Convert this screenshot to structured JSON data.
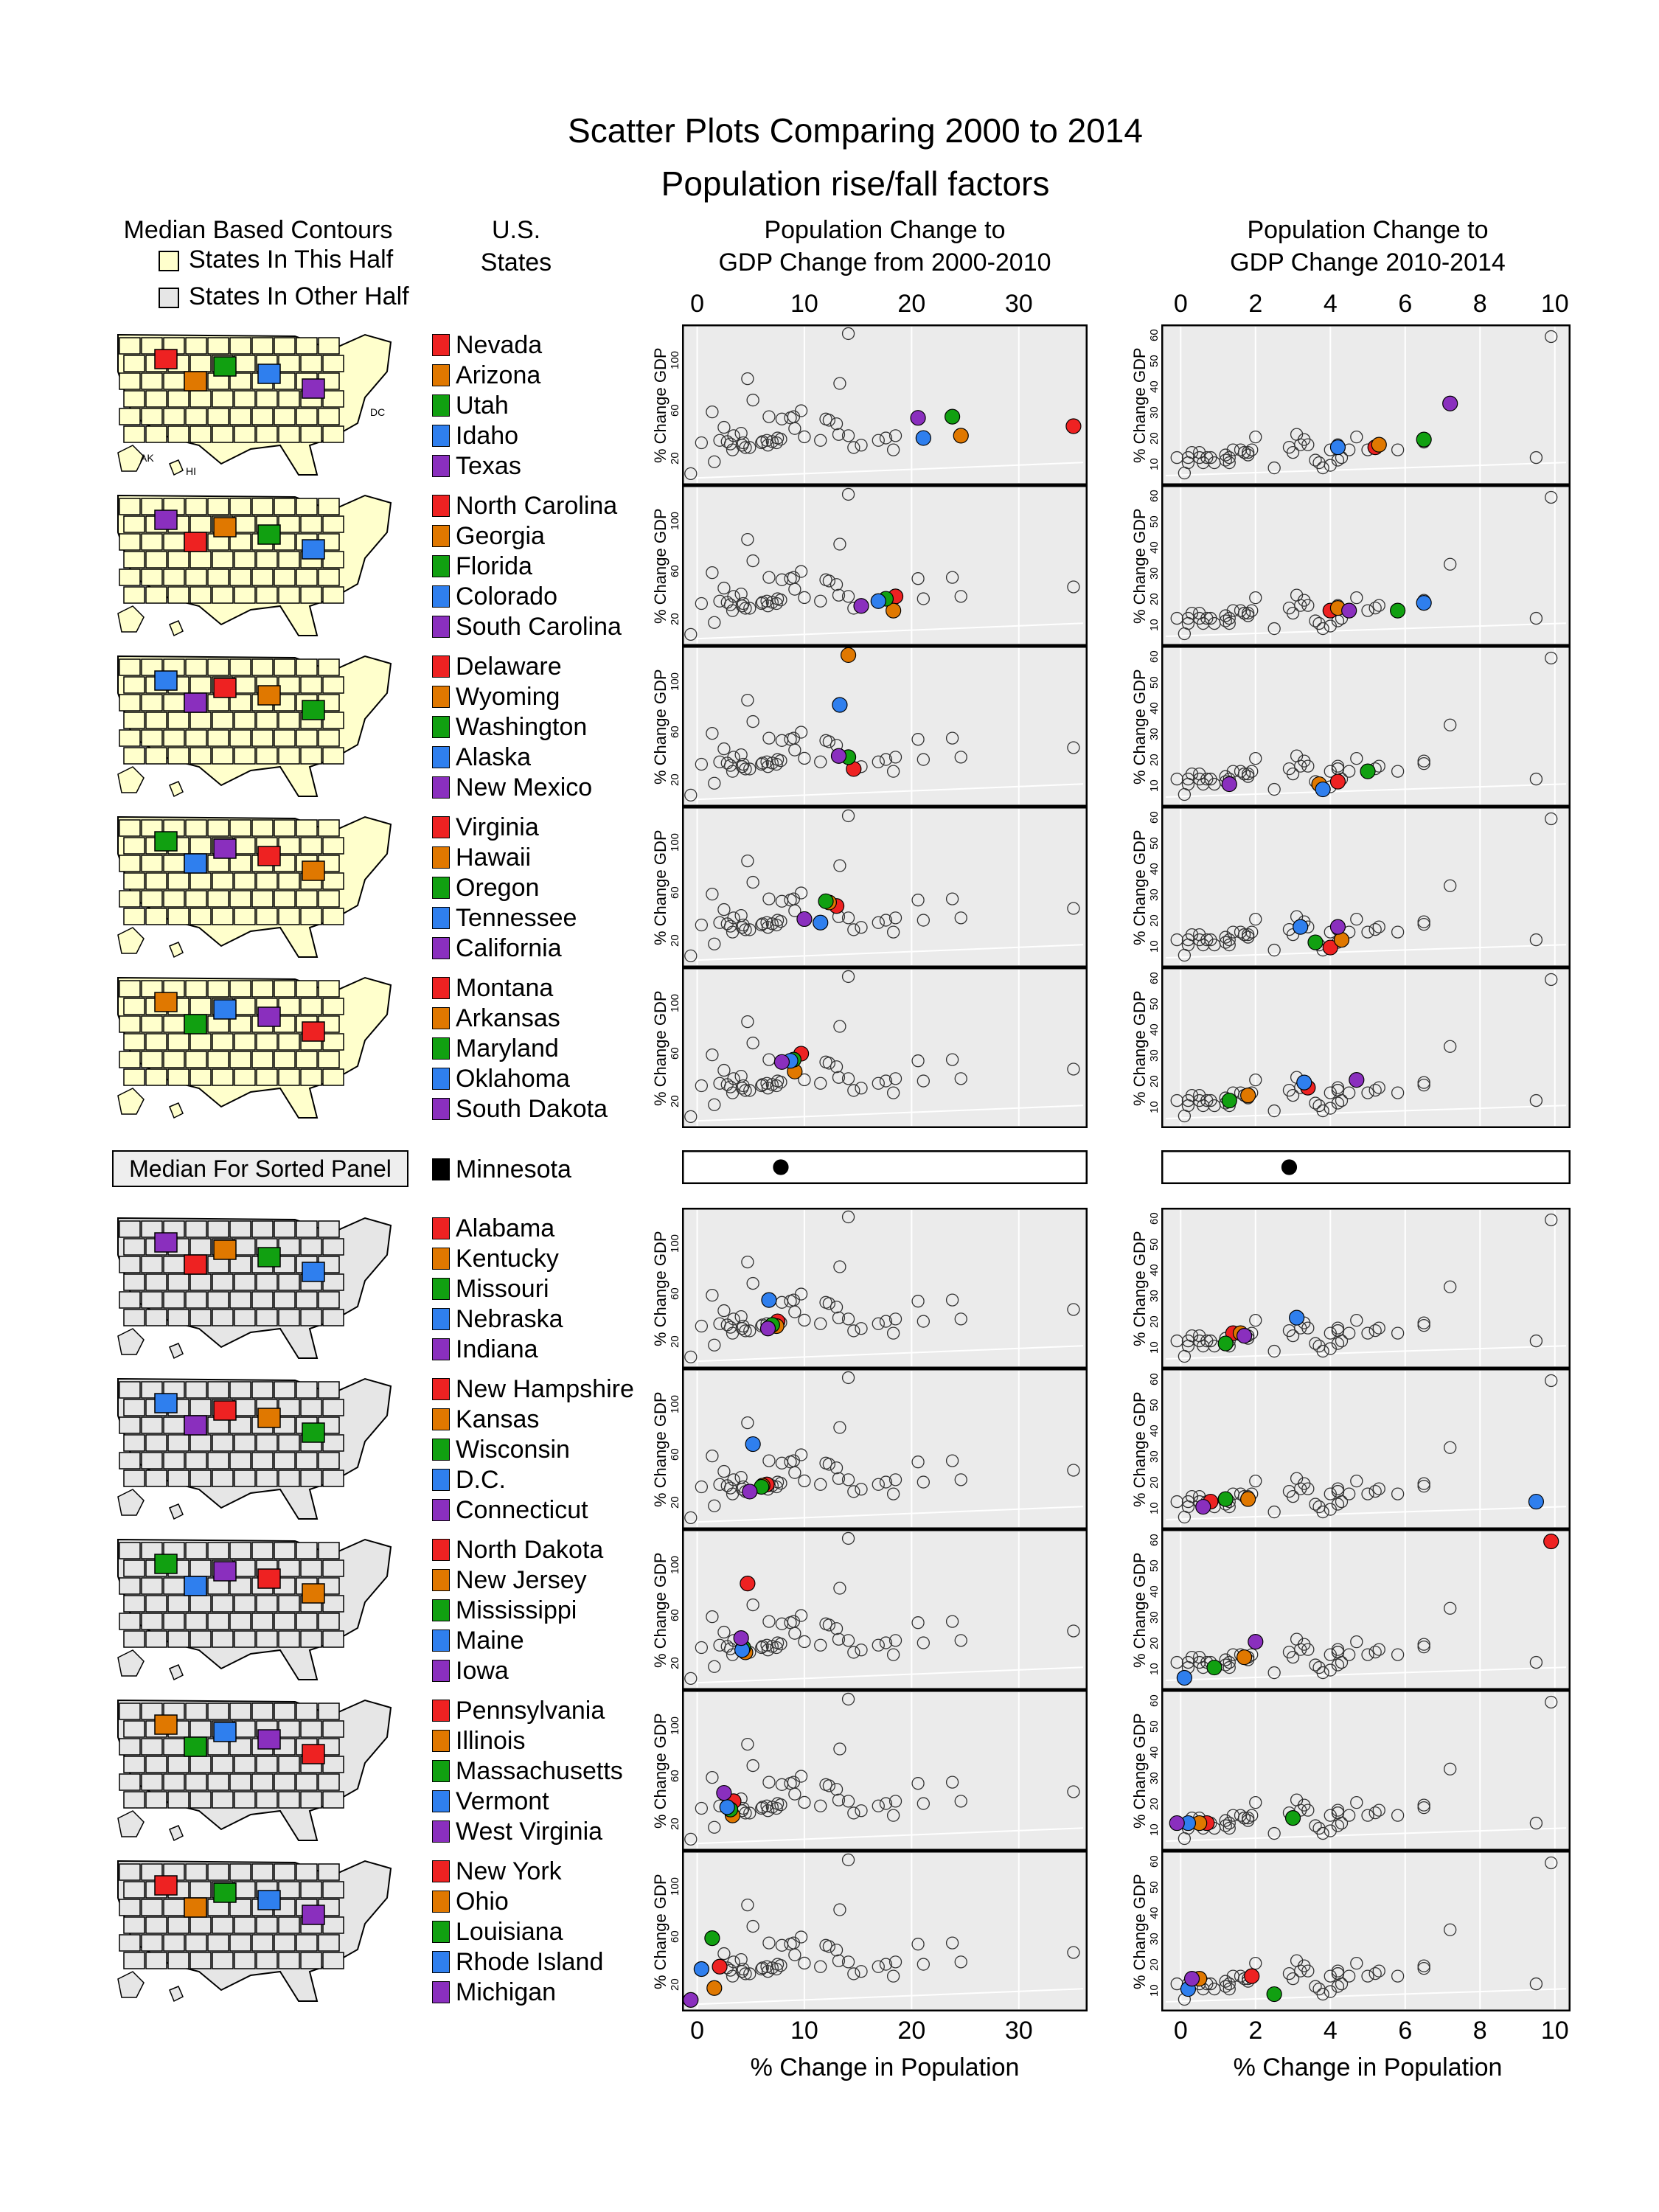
{
  "title_line1": "Scatter Plots Comparing 2000 to 2014",
  "title_line2": "Population rise/fall factors",
  "headers": {
    "maps_line1": "Median Based Contours",
    "key_this_half": "States In This Half",
    "key_other_half": "States In Other Half",
    "states_line1": "U.S.",
    "states_line2": "States",
    "left_line1": "Population Change to",
    "left_line2": "GDP Change from 2000-2010",
    "right_line1": "Population Change to",
    "right_line2": "GDP Change 2010-2014"
  },
  "median_label": "Median For Sorted Panel",
  "x_axis_label": "% Change in Population",
  "y_axis_label": "% Change GDP",
  "map_labels": {
    "ak": "AK",
    "hi": "HI",
    "dc": "DC"
  },
  "colors": {
    "red": "#ee2222",
    "orange": "#e07800",
    "green": "#11a011",
    "blue": "#2f7fee",
    "purple": "#8a2fbe",
    "black": "#000000",
    "panel_bg": "#ebebeb",
    "this_half": "#ffffcc",
    "other_half": "#e6e6e6"
  },
  "groups": [
    [
      "Nevada",
      "Arizona",
      "Utah",
      "Idaho",
      "Texas"
    ],
    [
      "North Carolina",
      "Georgia",
      "Florida",
      "Colorado",
      "South Carolina"
    ],
    [
      "Delaware",
      "Wyoming",
      "Washington",
      "Alaska",
      "New Mexico"
    ],
    [
      "Virginia",
      "Hawaii",
      "Oregon",
      "Tennessee",
      "California"
    ],
    [
      "Montana",
      "Arkansas",
      "Maryland",
      "Oklahoma",
      "South Dakota"
    ],
    [
      "Minnesota"
    ],
    [
      "Alabama",
      "Kentucky",
      "Missouri",
      "Nebraska",
      "Indiana"
    ],
    [
      "New Hampshire",
      "Kansas",
      "Wisconsin",
      "D.C.",
      "Connecticut"
    ],
    [
      "North Dakota",
      "New Jersey",
      "Mississippi",
      "Maine",
      "Iowa"
    ],
    [
      "Pennsylvania",
      "Illinois",
      "Massachusetts",
      "Vermont",
      "West Virginia"
    ],
    [
      "New York",
      "Ohio",
      "Louisiana",
      "Rhode Island",
      "Michigan"
    ]
  ],
  "chart_data": [
    {
      "type": "scatter",
      "title": "Population Change to GDP Change from 2000-2010",
      "xlabel": "% Change in Population",
      "ylabel": "% Change GDP",
      "xticks": [
        0,
        10,
        20,
        30
      ],
      "yticks": [
        20,
        60,
        100
      ],
      "xlim": [
        -1,
        36
      ],
      "ylim": [
        0,
        128
      ],
      "grid": true,
      "states": [
        {
          "name": "Nevada",
          "x": 35.1,
          "y": 46
        },
        {
          "name": "Arizona",
          "x": 24.6,
          "y": 38
        },
        {
          "name": "Utah",
          "x": 23.8,
          "y": 54
        },
        {
          "name": "Idaho",
          "x": 21.1,
          "y": 36
        },
        {
          "name": "Texas",
          "x": 20.6,
          "y": 53
        },
        {
          "name": "North Carolina",
          "x": 18.5,
          "y": 38
        },
        {
          "name": "Georgia",
          "x": 18.3,
          "y": 26
        },
        {
          "name": "Florida",
          "x": 17.6,
          "y": 36
        },
        {
          "name": "Colorado",
          "x": 16.9,
          "y": 34
        },
        {
          "name": "South Carolina",
          "x": 15.3,
          "y": 30
        },
        {
          "name": "Delaware",
          "x": 14.6,
          "y": 28
        },
        {
          "name": "Wyoming",
          "x": 14.1,
          "y": 124
        },
        {
          "name": "Washington",
          "x": 14.1,
          "y": 38
        },
        {
          "name": "Alaska",
          "x": 13.3,
          "y": 82
        },
        {
          "name": "New Mexico",
          "x": 13.2,
          "y": 39
        },
        {
          "name": "Virginia",
          "x": 13.0,
          "y": 48
        },
        {
          "name": "Hawaii",
          "x": 12.3,
          "y": 51
        },
        {
          "name": "Oregon",
          "x": 12.0,
          "y": 52
        },
        {
          "name": "Tennessee",
          "x": 11.5,
          "y": 34
        },
        {
          "name": "California",
          "x": 10.0,
          "y": 37
        },
        {
          "name": "Montana",
          "x": 9.7,
          "y": 59
        },
        {
          "name": "Arkansas",
          "x": 9.1,
          "y": 44
        },
        {
          "name": "Maryland",
          "x": 9.0,
          "y": 54
        },
        {
          "name": "Oklahoma",
          "x": 8.7,
          "y": 53
        },
        {
          "name": "South Dakota",
          "x": 7.9,
          "y": 52
        },
        {
          "name": "Minnesota",
          "x": 7.8,
          "y": 35
        },
        {
          "name": "Alabama",
          "x": 7.5,
          "y": 36
        },
        {
          "name": "Kentucky",
          "x": 7.4,
          "y": 32
        },
        {
          "name": "Missouri",
          "x": 7.0,
          "y": 33
        },
        {
          "name": "Nebraska",
          "x": 6.7,
          "y": 54
        },
        {
          "name": "Indiana",
          "x": 6.6,
          "y": 30
        },
        {
          "name": "New Hampshire",
          "x": 6.5,
          "y": 34
        },
        {
          "name": "Kansas",
          "x": 6.1,
          "y": 33
        },
        {
          "name": "Wisconsin",
          "x": 6.0,
          "y": 32
        },
        {
          "name": "D.C.",
          "x": 5.2,
          "y": 68
        },
        {
          "name": "Connecticut",
          "x": 4.9,
          "y": 28
        },
        {
          "name": "North Dakota",
          "x": 4.7,
          "y": 86
        },
        {
          "name": "New Jersey",
          "x": 4.5,
          "y": 28
        },
        {
          "name": "Mississippi",
          "x": 4.3,
          "y": 32
        },
        {
          "name": "Maine",
          "x": 4.2,
          "y": 30
        },
        {
          "name": "Iowa",
          "x": 4.1,
          "y": 40
        },
        {
          "name": "Pennsylvania",
          "x": 3.4,
          "y": 38
        },
        {
          "name": "Illinois",
          "x": 3.3,
          "y": 26
        },
        {
          "name": "Massachusetts",
          "x": 3.1,
          "y": 31
        },
        {
          "name": "Vermont",
          "x": 2.8,
          "y": 33
        },
        {
          "name": "West Virginia",
          "x": 2.5,
          "y": 45
        },
        {
          "name": "New York",
          "x": 2.1,
          "y": 34
        },
        {
          "name": "Ohio",
          "x": 1.6,
          "y": 16
        },
        {
          "name": "Louisiana",
          "x": 1.4,
          "y": 58
        },
        {
          "name": "Rhode Island",
          "x": 0.4,
          "y": 32
        },
        {
          "name": "Michigan",
          "x": -0.6,
          "y": 6
        }
      ]
    },
    {
      "type": "scatter",
      "title": "Population Change to GDP Change 2010-2014",
      "xlabel": "% Change in Population",
      "ylabel": "% Change GDP",
      "xticks": [
        0,
        2,
        4,
        6,
        8,
        10
      ],
      "yticks": [
        10,
        20,
        30,
        40,
        50,
        60
      ],
      "xlim": [
        -0.4,
        10.3
      ],
      "ylim": [
        3,
        62
      ],
      "grid": true,
      "states": [
        {
          "name": "Nevada",
          "x": 5.2,
          "y": 16
        },
        {
          "name": "Arizona",
          "x": 5.3,
          "y": 17
        },
        {
          "name": "Utah",
          "x": 6.5,
          "y": 19
        },
        {
          "name": "Idaho",
          "x": 4.2,
          "y": 16
        },
        {
          "name": "Texas",
          "x": 7.2,
          "y": 33
        },
        {
          "name": "North Carolina",
          "x": 4.0,
          "y": 15
        },
        {
          "name": "Georgia",
          "x": 4.2,
          "y": 16
        },
        {
          "name": "Florida",
          "x": 5.8,
          "y": 15
        },
        {
          "name": "Colorado",
          "x": 6.5,
          "y": 18
        },
        {
          "name": "South Carolina",
          "x": 4.5,
          "y": 15
        },
        {
          "name": "Delaware",
          "x": 4.2,
          "y": 11
        },
        {
          "name": "Wyoming",
          "x": 3.7,
          "y": 10
        },
        {
          "name": "Washington",
          "x": 5.0,
          "y": 15
        },
        {
          "name": "Alaska",
          "x": 3.8,
          "y": 8
        },
        {
          "name": "New Mexico",
          "x": 1.3,
          "y": 10
        },
        {
          "name": "Virginia",
          "x": 4.0,
          "y": 9
        },
        {
          "name": "Hawaii",
          "x": 4.3,
          "y": 12
        },
        {
          "name": "Oregon",
          "x": 3.6,
          "y": 11
        },
        {
          "name": "Tennessee",
          "x": 3.2,
          "y": 17
        },
        {
          "name": "California",
          "x": 4.2,
          "y": 17
        },
        {
          "name": "Montana",
          "x": 3.4,
          "y": 17
        },
        {
          "name": "Arkansas",
          "x": 1.8,
          "y": 14
        },
        {
          "name": "Maryland",
          "x": 1.3,
          "y": 12
        },
        {
          "name": "Oklahoma",
          "x": 3.3,
          "y": 19
        },
        {
          "name": "South Dakota",
          "x": 4.7,
          "y": 20
        },
        {
          "name": "Minnesota",
          "x": 2.9,
          "y": 16
        },
        {
          "name": "Alabama",
          "x": 1.4,
          "y": 15
        },
        {
          "name": "Kentucky",
          "x": 1.6,
          "y": 15
        },
        {
          "name": "Missouri",
          "x": 1.2,
          "y": 11
        },
        {
          "name": "Nebraska",
          "x": 3.1,
          "y": 21
        },
        {
          "name": "Indiana",
          "x": 1.7,
          "y": 14
        },
        {
          "name": "New Hampshire",
          "x": 0.8,
          "y": 12
        },
        {
          "name": "Kansas",
          "x": 1.8,
          "y": 13
        },
        {
          "name": "Wisconsin",
          "x": 1.2,
          "y": 13
        },
        {
          "name": "D.C.",
          "x": 9.5,
          "y": 12
        },
        {
          "name": "Connecticut",
          "x": 0.6,
          "y": 10
        },
        {
          "name": "North Dakota",
          "x": 9.9,
          "y": 59
        },
        {
          "name": "New Jersey",
          "x": 1.7,
          "y": 14
        },
        {
          "name": "Mississippi",
          "x": 0.9,
          "y": 10
        },
        {
          "name": "Maine",
          "x": 0.1,
          "y": 6
        },
        {
          "name": "Iowa",
          "x": 2.0,
          "y": 20
        },
        {
          "name": "Pennsylvania",
          "x": 0.7,
          "y": 12
        },
        {
          "name": "Illinois",
          "x": 0.5,
          "y": 12
        },
        {
          "name": "Massachusetts",
          "x": 3.0,
          "y": 14
        },
        {
          "name": "Vermont",
          "x": 0.2,
          "y": 12
        },
        {
          "name": "West Virginia",
          "x": -0.1,
          "y": 12
        },
        {
          "name": "New York",
          "x": 1.9,
          "y": 15
        },
        {
          "name": "Ohio",
          "x": 0.5,
          "y": 14
        },
        {
          "name": "Louisiana",
          "x": 2.5,
          "y": 8
        },
        {
          "name": "Rhode Island",
          "x": 0.2,
          "y": 10
        },
        {
          "name": "Michigan",
          "x": 0.3,
          "y": 14
        }
      ]
    }
  ]
}
